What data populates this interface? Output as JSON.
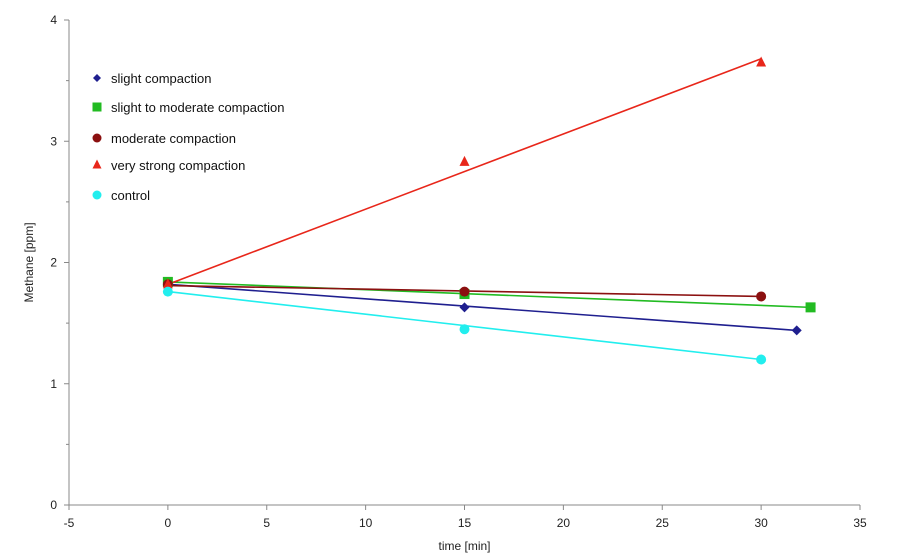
{
  "chart_data": {
    "type": "scatter",
    "xlabel": "time [min]",
    "ylabel": "Methane [ppm]",
    "xlim": [
      -5,
      35
    ],
    "ylim": [
      0,
      4
    ],
    "xticks": [
      -5,
      0,
      5,
      10,
      15,
      20,
      25,
      30,
      35
    ],
    "yticks": [
      0,
      1,
      2,
      3,
      4
    ],
    "grid": false,
    "legend_position": "top-left",
    "series": [
      {
        "name": "slight compaction",
        "color": "#1f1f8f",
        "marker": "diamond",
        "x": [
          0,
          15,
          31.8
        ],
        "y": [
          1.81,
          1.63,
          1.44
        ],
        "trendline": {
          "x": [
            0,
            31.8
          ],
          "y": [
            1.82,
            1.44
          ]
        }
      },
      {
        "name": "slight to moderate compaction",
        "color": "#22bb22",
        "marker": "square",
        "x": [
          0,
          15,
          32.5
        ],
        "y": [
          1.84,
          1.74,
          1.63
        ],
        "trendline": {
          "x": [
            0,
            32.5
          ],
          "y": [
            1.84,
            1.63
          ]
        }
      },
      {
        "name": "moderate compaction",
        "color": "#8b1010",
        "marker": "circle",
        "x": [
          0,
          15,
          30
        ],
        "y": [
          1.82,
          1.76,
          1.72
        ],
        "trendline": {
          "x": [
            0,
            30
          ],
          "y": [
            1.81,
            1.72
          ]
        }
      },
      {
        "name": "very strong compaction",
        "color": "#e8261a",
        "marker": "triangle",
        "x": [
          0,
          15,
          30
        ],
        "y": [
          1.82,
          2.83,
          3.65
        ],
        "trendline": {
          "x": [
            0,
            30
          ],
          "y": [
            1.82,
            3.68
          ]
        }
      },
      {
        "name": "control",
        "color": "#22eeee",
        "marker": "circle",
        "x": [
          0,
          15,
          30
        ],
        "y": [
          1.76,
          1.45,
          1.2
        ],
        "trendline": {
          "x": [
            0,
            30
          ],
          "y": [
            1.76,
            1.2
          ]
        }
      }
    ]
  }
}
